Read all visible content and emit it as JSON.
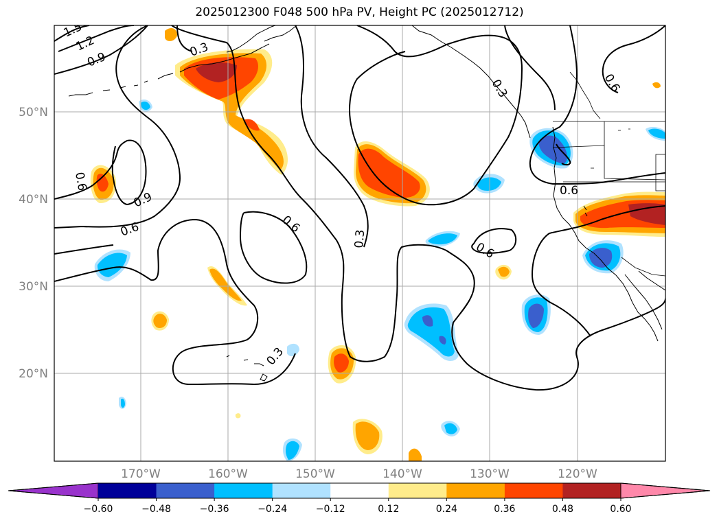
{
  "title": "2025012300 F048 500 hPa PV, Height PC (2025012712)",
  "lat_labels": [
    "50°N",
    "40°N",
    "30°N",
    "20°N"
  ],
  "lon_labels": [
    "170°W",
    "160°W",
    "150°W",
    "140°W",
    "130°W",
    "120°W"
  ],
  "colorbar": {
    "ticks": [
      "−0.60",
      "−0.48",
      "−0.36",
      "−0.24",
      "−0.12",
      "0.12",
      "0.24",
      "0.36",
      "0.48",
      "0.60"
    ],
    "colors": [
      "#9933cc",
      "#000099",
      "#3a5fcd",
      "#00bfff",
      "#b0e2ff",
      "#ffffff",
      "#ffec8b",
      "#ffa500",
      "#ff4500",
      "#b22222",
      "#ff88aa"
    ]
  },
  "contour_labels": [
    "1.5",
    "1.2",
    "0.9",
    "0.3",
    "0.6",
    "0.9",
    "0.6",
    "0.6",
    "0.3",
    "0.3",
    "0.6",
    "0.6",
    "0.3",
    "0.6"
  ]
}
